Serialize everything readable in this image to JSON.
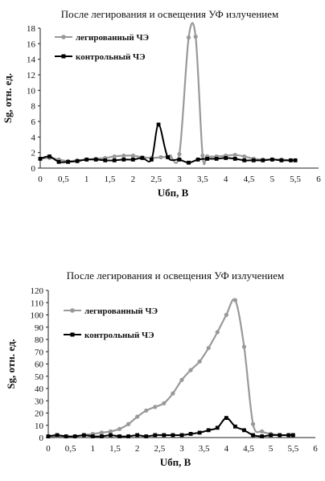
{
  "chart_data": [
    {
      "type": "line",
      "title": "После легирования и освещения  УФ излучением",
      "xlabel": "Uбп, В",
      "ylabel": "Sg, отн. ед.",
      "xlim": [
        0,
        6
      ],
      "ylim": [
        0,
        18
      ],
      "x_ticks": [
        "0",
        "0,5",
        "1",
        "1,5",
        "2",
        "2,5",
        "3",
        "3,5",
        "4",
        "4,5",
        "5",
        "5,5",
        "6"
      ],
      "y_ticks": [
        "0",
        "2",
        "4",
        "6",
        "8",
        "10",
        "12",
        "14",
        "16",
        "18"
      ],
      "grid": false,
      "legend_position": "top-left",
      "series": [
        {
          "name": "легированный ЧЭ",
          "color": "#999999",
          "marker": "circle",
          "x": [
            0,
            0.2,
            0.4,
            0.6,
            0.8,
            1.0,
            1.2,
            1.4,
            1.6,
            1.8,
            2.0,
            2.2,
            2.4,
            2.6,
            2.8,
            3.0,
            3.2,
            3.35,
            3.5,
            3.6,
            3.8,
            4.0,
            4.2,
            4.4,
            4.6,
            4.8,
            5.0,
            5.2,
            5.4,
            5.5
          ],
          "y": [
            1.2,
            1.3,
            1.1,
            0.9,
            1.0,
            1.1,
            1.2,
            1.3,
            1.5,
            1.6,
            1.6,
            1.4,
            1.3,
            1.4,
            1.5,
            1.8,
            16.8,
            16.9,
            1.6,
            1.5,
            1.5,
            1.6,
            1.7,
            1.5,
            1.2,
            1.1,
            1.1,
            1.1,
            1.0,
            1.0
          ]
        },
        {
          "name": "контрольный ЧЭ",
          "color": "#000000",
          "marker": "square",
          "x": [
            0,
            0.2,
            0.4,
            0.6,
            0.8,
            1.0,
            1.2,
            1.4,
            1.6,
            1.8,
            2.0,
            2.2,
            2.4,
            2.55,
            2.75,
            3.0,
            3.2,
            3.4,
            3.6,
            3.8,
            4.0,
            4.2,
            4.4,
            4.6,
            4.8,
            5.0,
            5.2,
            5.4,
            5.5
          ],
          "y": [
            1.2,
            1.5,
            0.8,
            0.8,
            0.9,
            1.1,
            1.1,
            1.0,
            1.0,
            1.1,
            1.1,
            1.3,
            1.1,
            5.6,
            1.4,
            1.1,
            0.7,
            1.1,
            1.2,
            1.2,
            1.3,
            1.2,
            1.0,
            1.0,
            1.0,
            1.1,
            1.0,
            1.0,
            1.0
          ]
        }
      ]
    },
    {
      "type": "line",
      "title": "После легирования и освещения УФ излучением",
      "xlabel": "Uбп, В",
      "ylabel": "Sg, отн. ед.",
      "xlim": [
        0,
        6
      ],
      "ylim": [
        0,
        120
      ],
      "x_ticks": [
        "0",
        "0,5",
        "1",
        "1,5",
        "2",
        "2,5",
        "3",
        "3,5",
        "4",
        "4,5",
        "5",
        "5,5",
        "6"
      ],
      "y_ticks": [
        "0",
        "10",
        "20",
        "30",
        "40",
        "50",
        "60",
        "70",
        "80",
        "90",
        "100",
        "110",
        "120"
      ],
      "grid": false,
      "legend_position": "top-left",
      "series": [
        {
          "name": "легированный ЧЭ",
          "color": "#999999",
          "marker": "circle",
          "x": [
            0,
            0.2,
            0.4,
            0.6,
            0.8,
            1.0,
            1.2,
            1.4,
            1.6,
            1.8,
            2.0,
            2.2,
            2.4,
            2.6,
            2.8,
            3.0,
            3.2,
            3.4,
            3.6,
            3.8,
            4.0,
            4.2,
            4.4,
            4.6,
            4.8,
            5.0,
            5.2,
            5.4,
            5.5
          ],
          "y": [
            1,
            1,
            1,
            1,
            2,
            3,
            4,
            5,
            7,
            11,
            17,
            22,
            25,
            28,
            36,
            47,
            55,
            62,
            73,
            86,
            100,
            112,
            74,
            11,
            5,
            3,
            2,
            2,
            2
          ]
        },
        {
          "name": "контрольный ЧЭ",
          "color": "#000000",
          "marker": "square",
          "x": [
            0,
            0.2,
            0.4,
            0.6,
            0.8,
            1.0,
            1.2,
            1.4,
            1.6,
            1.8,
            2.0,
            2.2,
            2.4,
            2.6,
            2.8,
            3.0,
            3.2,
            3.4,
            3.6,
            3.8,
            4.0,
            4.2,
            4.4,
            4.6,
            4.8,
            5.0,
            5.2,
            5.4,
            5.5
          ],
          "y": [
            1,
            2,
            1,
            1,
            2,
            1,
            1,
            2,
            1,
            1,
            2,
            1,
            2,
            2,
            2,
            2,
            3,
            4,
            6,
            8,
            16,
            9,
            6,
            2,
            1,
            2,
            2,
            2,
            2
          ]
        }
      ]
    }
  ]
}
